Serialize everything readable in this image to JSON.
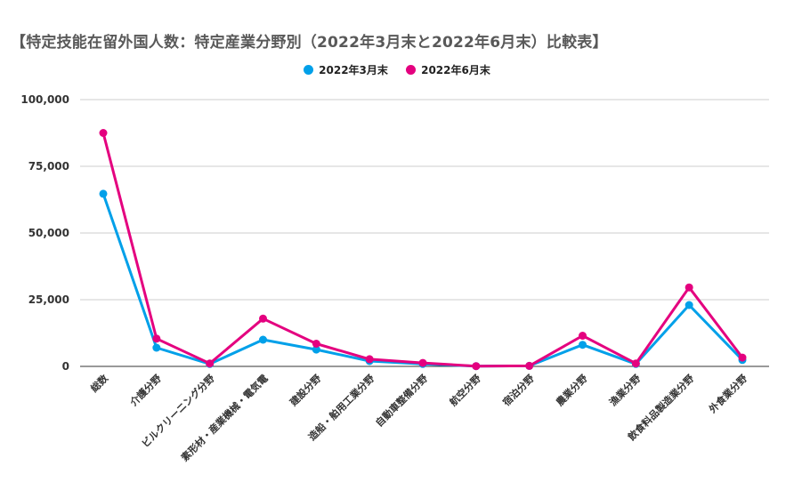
{
  "chart_data": {
    "type": "line",
    "title": "【特定技能在留外国人数：特定産業分野別（2022年3月末と2022年6月末）比較表】",
    "xlabel": "",
    "ylabel": "",
    "ylim": [
      0,
      100000
    ],
    "yticks": [
      0,
      25000,
      50000,
      75000,
      100000
    ],
    "ytick_labels": [
      "0",
      "25,000",
      "50,000",
      "75,000",
      "100,000"
    ],
    "grid": true,
    "legend": "top-center",
    "categories": [
      "総数",
      "介護分野",
      "ビルクリーニング分野",
      "素形材・産業機械・電気電",
      "建設分野",
      "造船・舶用工業分野",
      "自動車整備分野",
      "航空分野",
      "宿泊分野",
      "農業分野",
      "漁業分野",
      "飲食料品製造業分野",
      "外食業分野"
    ],
    "series": [
      {
        "name": "2022年3月末",
        "color": "#00a0e9",
        "values": [
          64700,
          7000,
          900,
          10000,
          6300,
          2000,
          900,
          100,
          200,
          8100,
          900,
          23000,
          2400
        ]
      },
      {
        "name": "2022年6月末",
        "color": "#e4007f",
        "values": [
          87500,
          10400,
          1100,
          17900,
          8500,
          2700,
          1300,
          100,
          200,
          11500,
          1100,
          29600,
          3300
        ]
      }
    ]
  }
}
